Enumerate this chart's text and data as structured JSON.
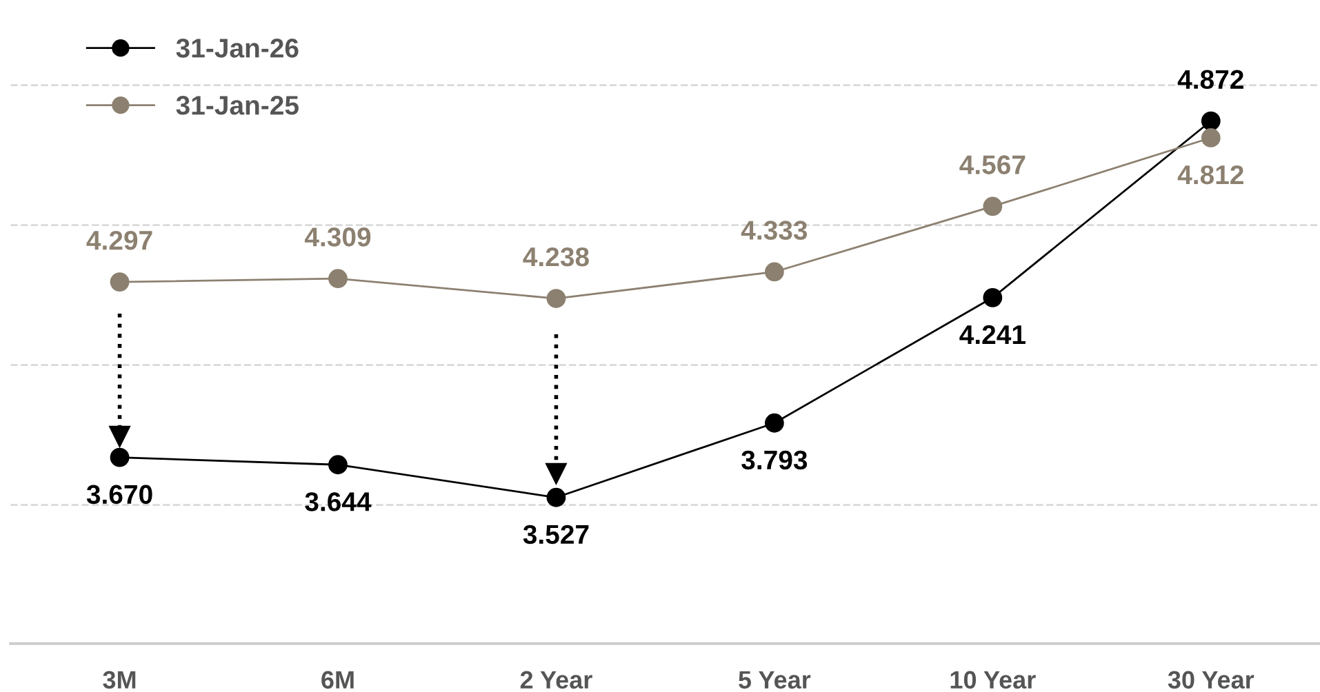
{
  "chart_data": {
    "type": "line",
    "categories": [
      "3M",
      "6M",
      "2 Year",
      "5 Year",
      "10 Year",
      "30 Year"
    ],
    "series": [
      {
        "name": "31-Jan-26",
        "color": "#000000",
        "values": [
          3.67,
          3.644,
          3.527,
          3.793,
          4.241,
          4.872
        ],
        "value_labels": [
          "3.670",
          "3.644",
          "3.527",
          "3.793",
          "4.241",
          "4.872"
        ]
      },
      {
        "name": "31-Jan-25",
        "color": "#8c8070",
        "values": [
          4.297,
          4.309,
          4.238,
          4.333,
          4.567,
          4.812
        ],
        "value_labels": [
          "4.297",
          "4.309",
          "4.238",
          "4.333",
          "4.567",
          "4.812"
        ]
      }
    ],
    "ref_lines": [
      {
        "axis": "y",
        "value": 3.5,
        "color": "#d9d9d9",
        "line_style": "dashed"
      },
      {
        "axis": "y",
        "value": 4.0,
        "color": "#d9d9d9",
        "line_style": "dashed"
      },
      {
        "axis": "y",
        "value": 4.5,
        "color": "#d9d9d9",
        "line_style": "dashed"
      },
      {
        "axis": "y",
        "value": 5.0,
        "color": "#d9d9d9",
        "line_style": "dashed"
      }
    ],
    "tick_labels": "x",
    "legend": "top left",
    "marker": "circle",
    "line_style": "solid"
  }
}
